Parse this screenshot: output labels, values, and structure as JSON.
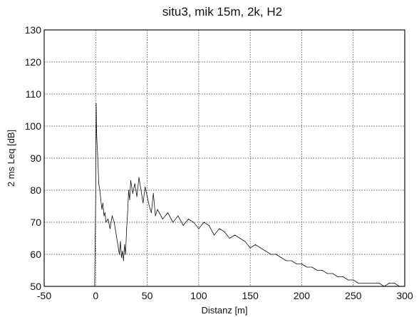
{
  "chart_data": {
    "type": "line",
    "title": "situ3, mik 15m, 2k, H2",
    "xlabel": "Distanz [m]",
    "ylabel": "2 ms Leq [dB]",
    "xlim": [
      -50,
      300
    ],
    "ylim": [
      50,
      130
    ],
    "xticks": [
      "-50",
      "0",
      "50",
      "100",
      "150",
      "200",
      "250",
      "300"
    ],
    "yticks": [
      "50",
      "60",
      "70",
      "80",
      "90",
      "100",
      "110",
      "120",
      "130"
    ],
    "grid": true,
    "legend": "none",
    "line_color": "#111111",
    "series": [
      {
        "x": [
          -1,
          0,
          0.5,
          1,
          2,
          3,
          4,
          5,
          6,
          7,
          8,
          9,
          10,
          12,
          14,
          16,
          18,
          20,
          22,
          23,
          24,
          25,
          26,
          27,
          28,
          29,
          30,
          31,
          32,
          33,
          34,
          36,
          38,
          40,
          42,
          44,
          46,
          48,
          50,
          52,
          54,
          56,
          58,
          60,
          65,
          70,
          75,
          80,
          85,
          90,
          95,
          100,
          105,
          110,
          115,
          120,
          125,
          130,
          135,
          140,
          145,
          150,
          155,
          160,
          165,
          170,
          175,
          180,
          185,
          190,
          195,
          200,
          205,
          210,
          215,
          220,
          225,
          230,
          235,
          240,
          245,
          250,
          255,
          260,
          265,
          270,
          275,
          280,
          285,
          290,
          295
        ],
        "y": [
          50,
          78,
          107,
          97,
          90,
          82,
          80,
          77,
          74,
          76,
          72,
          73,
          70,
          71,
          68,
          72,
          70,
          66,
          62,
          60,
          64,
          59,
          61,
          58,
          63,
          60,
          68,
          73,
          80,
          77,
          83,
          79,
          82,
          78,
          84,
          80,
          76,
          81,
          78,
          75,
          73,
          79,
          72,
          74,
          71,
          73,
          70,
          72,
          69,
          71,
          70,
          68,
          70,
          69,
          66,
          68,
          67,
          65,
          66,
          65,
          64,
          62,
          63,
          62,
          61,
          60,
          60,
          59,
          58,
          58,
          57,
          57,
          56,
          56,
          55,
          55,
          54,
          54,
          53,
          53,
          52,
          52,
          51,
          51,
          51,
          51,
          51,
          50,
          51,
          51,
          50
        ]
      }
    ]
  }
}
